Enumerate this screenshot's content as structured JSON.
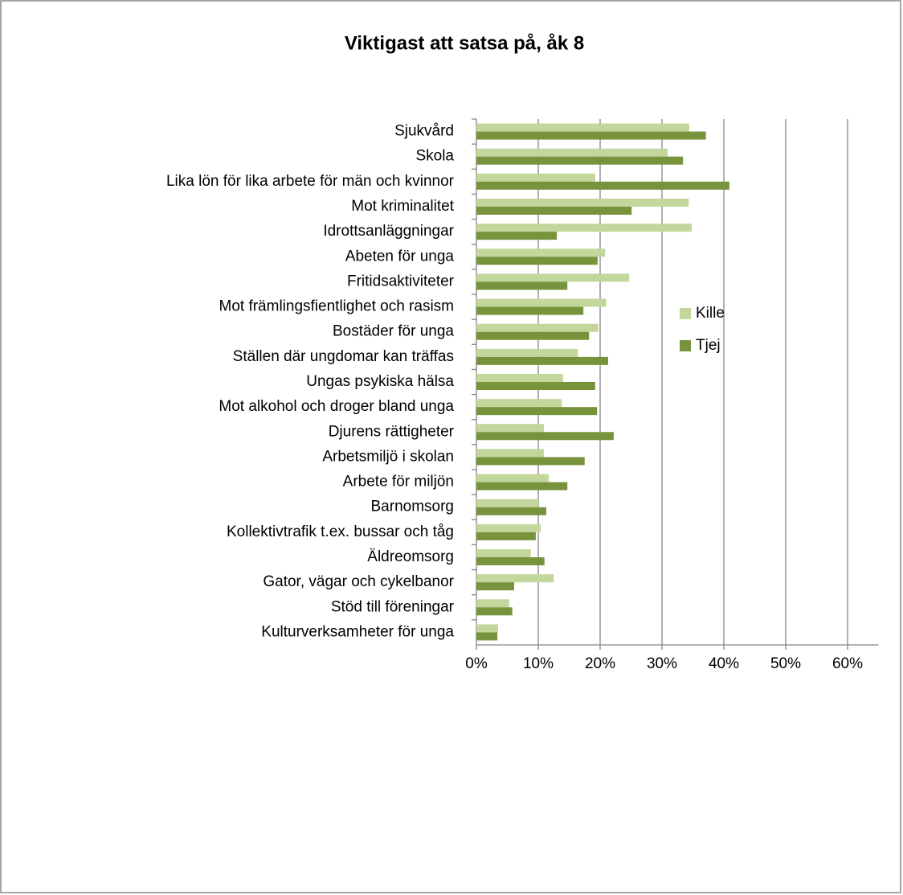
{
  "chart_data": {
    "type": "hbar",
    "title": "Viktigast att satsa på, åk 8",
    "categories": [
      "Sjukvård",
      "Skola",
      "Lika lön för lika arbete för män och kvinnor",
      "Mot kriminalitet",
      "Idrottsanläggningar",
      "Abeten för unga",
      "Fritidsaktiviteter",
      "Mot främlingsfientlighet och rasism",
      "Bostäder för unga",
      "Ställen där ungdomar kan träffas",
      "Ungas psykiska hälsa",
      "Mot alkohol och droger bland unga",
      "Djurens rättigheter",
      "Arbetsmiljö i skolan",
      "Arbete för miljön",
      "Barnomsorg",
      "Kollektivtrafik t.ex. bussar och tåg",
      "Äldreomsorg",
      "Gator, vägar och cykelbanor",
      "Stöd till föreningar",
      "Kulturverksamheter för unga"
    ],
    "series": [
      {
        "name": "Kille",
        "color": "#c3d69b",
        "values": [
          34.4,
          30.9,
          19.2,
          34.3,
          34.8,
          20.8,
          24.7,
          21.0,
          19.7,
          16.4,
          14.0,
          13.8,
          10.9,
          10.9,
          11.7,
          10.0,
          10.4,
          8.8,
          12.5,
          5.3,
          3.5
        ]
      },
      {
        "name": "Tjej",
        "color": "#77933c",
        "values": [
          37.1,
          33.4,
          40.9,
          25.1,
          13.0,
          19.6,
          14.7,
          17.3,
          18.2,
          21.3,
          19.2,
          19.5,
          22.2,
          17.5,
          14.7,
          11.3,
          9.6,
          11.0,
          6.1,
          5.8,
          3.4
        ]
      }
    ],
    "xlim": [
      0,
      65
    ],
    "xticks": [
      {
        "value": 0,
        "label": "0%"
      },
      {
        "value": 10,
        "label": "10%"
      },
      {
        "value": 20,
        "label": "20%"
      },
      {
        "value": 30,
        "label": "30%"
      },
      {
        "value": 40,
        "label": "40%"
      },
      {
        "value": 50,
        "label": "50%"
      },
      {
        "value": 60,
        "label": "60%"
      }
    ],
    "grid": true,
    "legend": "right"
  }
}
